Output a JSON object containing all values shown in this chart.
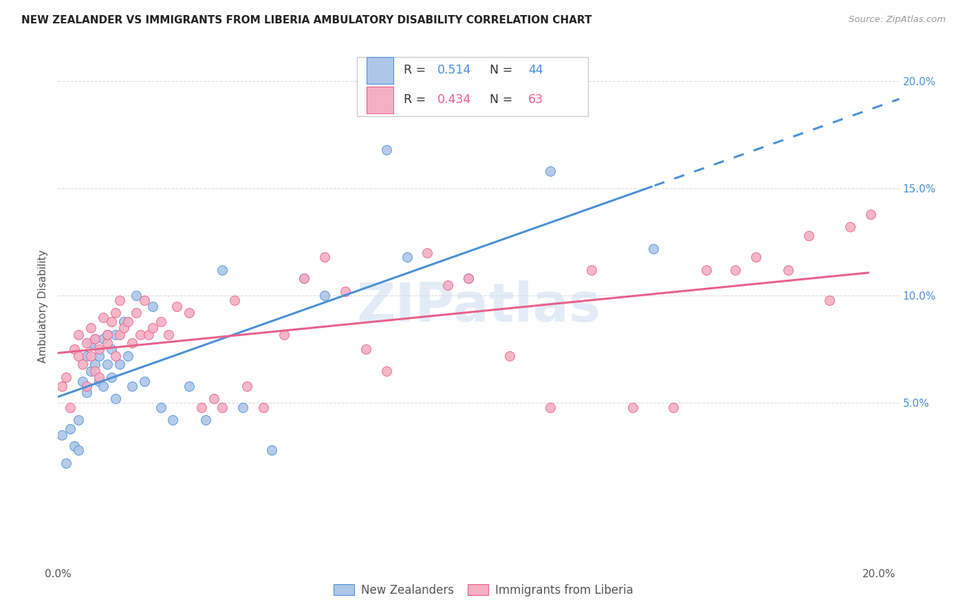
{
  "title": "NEW ZEALANDER VS IMMIGRANTS FROM LIBERIA AMBULATORY DISABILITY CORRELATION CHART",
  "source": "Source: ZipAtlas.com",
  "ylabel": "Ambulatory Disability",
  "xlim": [
    0.0,
    0.205
  ],
  "ylim": [
    -0.025,
    0.215
  ],
  "x_ticks": [
    0.0,
    0.04,
    0.08,
    0.12,
    0.16,
    0.2
  ],
  "x_tick_labels": [
    "0.0%",
    "",
    "",
    "",
    "",
    "20.0%"
  ],
  "y_ticks_right": [
    0.05,
    0.1,
    0.15,
    0.2
  ],
  "y_tick_labels_right": [
    "5.0%",
    "10.0%",
    "15.0%",
    "20.0%"
  ],
  "legend_label_bottom_1": "New Zealanders",
  "legend_label_bottom_2": "Immigrants from Liberia",
  "color_nz": "#aec6e8",
  "color_lib": "#f4afc4",
  "color_nz_line": "#4a90d9",
  "color_lib_line": "#e8608a",
  "nz_r": "0.514",
  "nz_n": "44",
  "lib_r": "0.434",
  "lib_n": "63",
  "nz_x": [
    0.001,
    0.002,
    0.003,
    0.004,
    0.005,
    0.005,
    0.006,
    0.007,
    0.007,
    0.008,
    0.008,
    0.009,
    0.009,
    0.01,
    0.01,
    0.011,
    0.011,
    0.012,
    0.012,
    0.013,
    0.013,
    0.014,
    0.014,
    0.015,
    0.016,
    0.017,
    0.018,
    0.019,
    0.021,
    0.023,
    0.025,
    0.028,
    0.032,
    0.036,
    0.04,
    0.045,
    0.052,
    0.06,
    0.065,
    0.08,
    0.085,
    0.1,
    0.12,
    0.145
  ],
  "nz_y": [
    0.035,
    0.022,
    0.038,
    0.03,
    0.028,
    0.042,
    0.06,
    0.055,
    0.072,
    0.065,
    0.078,
    0.068,
    0.08,
    0.06,
    0.072,
    0.058,
    0.08,
    0.068,
    0.082,
    0.062,
    0.075,
    0.052,
    0.082,
    0.068,
    0.088,
    0.072,
    0.058,
    0.1,
    0.06,
    0.095,
    0.048,
    0.042,
    0.058,
    0.042,
    0.112,
    0.048,
    0.028,
    0.108,
    0.1,
    0.168,
    0.118,
    0.108,
    0.158,
    0.122
  ],
  "lib_x": [
    0.001,
    0.002,
    0.003,
    0.004,
    0.005,
    0.005,
    0.006,
    0.007,
    0.007,
    0.008,
    0.008,
    0.009,
    0.009,
    0.01,
    0.01,
    0.011,
    0.012,
    0.012,
    0.013,
    0.014,
    0.014,
    0.015,
    0.015,
    0.016,
    0.017,
    0.018,
    0.019,
    0.02,
    0.021,
    0.022,
    0.023,
    0.025,
    0.027,
    0.029,
    0.032,
    0.035,
    0.038,
    0.04,
    0.043,
    0.046,
    0.05,
    0.055,
    0.06,
    0.065,
    0.07,
    0.075,
    0.08,
    0.09,
    0.095,
    0.1,
    0.11,
    0.12,
    0.13,
    0.14,
    0.15,
    0.158,
    0.165,
    0.17,
    0.178,
    0.183,
    0.188,
    0.193,
    0.198
  ],
  "lib_y": [
    0.058,
    0.062,
    0.048,
    0.075,
    0.072,
    0.082,
    0.068,
    0.078,
    0.058,
    0.072,
    0.085,
    0.065,
    0.08,
    0.062,
    0.075,
    0.09,
    0.078,
    0.082,
    0.088,
    0.092,
    0.072,
    0.082,
    0.098,
    0.085,
    0.088,
    0.078,
    0.092,
    0.082,
    0.098,
    0.082,
    0.085,
    0.088,
    0.082,
    0.095,
    0.092,
    0.048,
    0.052,
    0.048,
    0.098,
    0.058,
    0.048,
    0.082,
    0.108,
    0.118,
    0.102,
    0.075,
    0.065,
    0.12,
    0.105,
    0.108,
    0.072,
    0.048,
    0.112,
    0.048,
    0.048,
    0.112,
    0.112,
    0.118,
    0.112,
    0.128,
    0.098,
    0.132,
    0.138
  ],
  "background_color": "#ffffff",
  "grid_color": "#d8d8d8",
  "watermark_color": "#ccddf0",
  "watermark_text": "ZIPatlas"
}
